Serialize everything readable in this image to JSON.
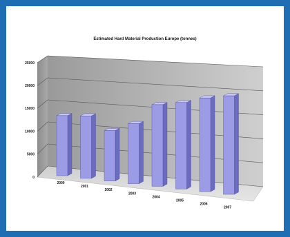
{
  "chart_data": {
    "type": "bar",
    "title": "Estimated Hard Material Production Europe (tonnes)",
    "categories": [
      "2000",
      "2001",
      "2002",
      "2003",
      "2004",
      "2005",
      "2006",
      "2007"
    ],
    "values": [
      12500,
      13000,
      10500,
      12500,
      17000,
      18000,
      19500,
      20500
    ],
    "ylim": [
      0,
      25000
    ],
    "yticks": [
      0,
      5000,
      10000,
      15000,
      20000,
      25000
    ],
    "xlabel": "",
    "ylabel": "",
    "grid": true,
    "legend": "none",
    "colors": {
      "bar_front": "#9b9be6",
      "bar_side": "#6b6bbf",
      "bar_top": "#c7c7f4",
      "wall": "#b7b7b7",
      "floor": "#d9d9d9",
      "frame": "#1f6db3"
    }
  }
}
